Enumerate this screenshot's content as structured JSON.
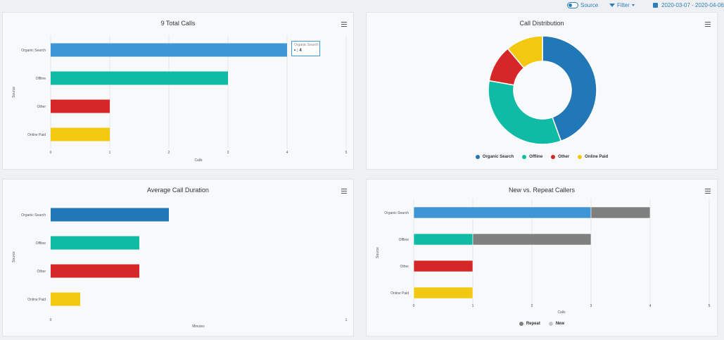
{
  "colors": {
    "organic": "#3f96d4",
    "organic_dark": "#2277b6",
    "offline": "#0fbba5",
    "other": "#d62728",
    "online_paid": "#f2c811",
    "repeat": "#7f7f7f",
    "new": "#c7c7c7",
    "accent": "#2c7fb8"
  },
  "topbar": {
    "source_label": "Source",
    "filter_label": "Filter",
    "date_range": "2020-03-07 - 2020-04-06"
  },
  "panels": {
    "total_calls": {
      "title": "9 Total Calls"
    },
    "distribution": {
      "title": "Call Distribution"
    },
    "avg_duration": {
      "title": "Average Call Duration"
    },
    "new_repeat": {
      "title": "New vs. Repeat Callers"
    }
  },
  "tooltip": {
    "header": "Organic Search",
    "value_text": "• : 4"
  },
  "chart_data": [
    {
      "type": "bar",
      "orientation": "horizontal",
      "title": "9 Total Calls",
      "categories": [
        "Organic Search",
        "Offline",
        "Other",
        "Online Paid"
      ],
      "values": [
        4,
        3,
        1,
        1
      ],
      "xlabel": "Calls",
      "ylabel": "Source",
      "xlim": [
        0,
        5
      ],
      "xticks": [
        "0",
        "1",
        "2",
        "3",
        "4",
        "5"
      ],
      "grid": true
    },
    {
      "type": "pie",
      "title": "Call Distribution",
      "donut": true,
      "categories": [
        "Organic Search",
        "Offline",
        "Other",
        "Online Paid"
      ],
      "values": [
        4,
        3,
        1,
        1
      ],
      "legend": "bottom"
    },
    {
      "type": "bar",
      "orientation": "horizontal",
      "title": "Average Call Duration",
      "categories": [
        "Organic Search",
        "Offline",
        "Other",
        "Online Paid"
      ],
      "values": [
        0.4,
        0.3,
        0.3,
        0.1
      ],
      "xlabel": "Minutes",
      "ylabel": "Source",
      "xlim": [
        0,
        1
      ],
      "xticks": [
        "0",
        "1"
      ],
      "grid": false
    },
    {
      "type": "bar",
      "orientation": "horizontal",
      "stacked": true,
      "title": "New vs. Repeat Callers",
      "categories": [
        "Organic Search",
        "Offline",
        "Other",
        "Online Paid"
      ],
      "series": [
        {
          "name": "New",
          "values": [
            3,
            1,
            1,
            1
          ]
        },
        {
          "name": "Repeat",
          "values": [
            1,
            2,
            0,
            0
          ]
        }
      ],
      "xlabel": "Calls",
      "ylabel": "Source",
      "xlim": [
        0,
        5
      ],
      "xticks": [
        "0",
        "1",
        "2",
        "3",
        "4",
        "5"
      ],
      "grid": true,
      "legend": "bottom",
      "legend_entries": [
        "Repeat",
        "New"
      ]
    }
  ]
}
